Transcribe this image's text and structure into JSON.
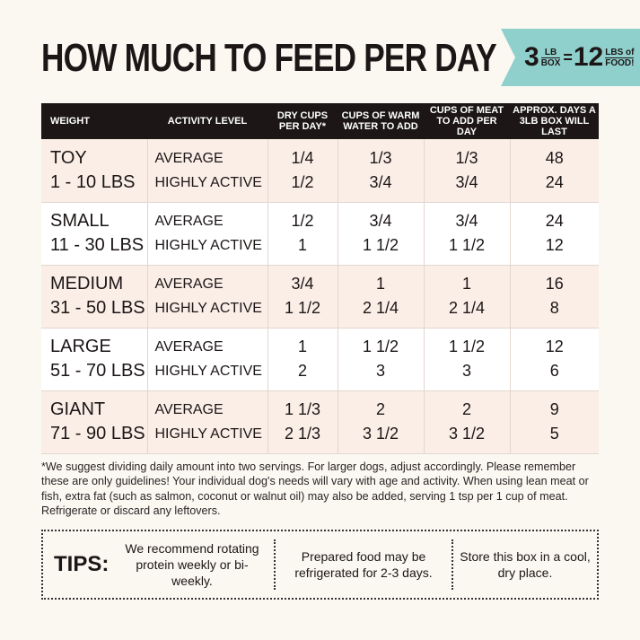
{
  "title": "HOW MUCH TO FEED PER DAY",
  "banner": {
    "n1": "3",
    "u1a": "LB",
    "u1b": "BOX",
    "eq": "=",
    "n2": "12",
    "u2a": "LBS of",
    "u2b": "FOOD!",
    "color": "#8fd0cc"
  },
  "headers": [
    "WEIGHT",
    "ACTIVITY LEVEL",
    "DRY CUPS PER DAY*",
    "CUPS OF WARM WATER TO ADD",
    "CUPS OF MEAT TO ADD PER DAY",
    "APPROX. DAYS A 3LB BOX WILL LAST"
  ],
  "rows": [
    {
      "size": "TOY",
      "range": "1 - 10 LBS",
      "a": [
        "AVERAGE",
        "1/4",
        "1/3",
        "1/3",
        "48"
      ],
      "h": [
        "HIGHLY ACTIVE",
        "1/2",
        "3/4",
        "3/4",
        "24"
      ]
    },
    {
      "size": "SMALL",
      "range": "11 - 30 LBS",
      "a": [
        "AVERAGE",
        "1/2",
        "3/4",
        "3/4",
        "24"
      ],
      "h": [
        "HIGHLY ACTIVE",
        "1",
        "1 1/2",
        "1 1/2",
        "12"
      ]
    },
    {
      "size": "MEDIUM",
      "range": "31 - 50 LBS",
      "a": [
        "AVERAGE",
        "3/4",
        "1",
        "1",
        "16"
      ],
      "h": [
        "HIGHLY ACTIVE",
        "1 1/2",
        "2 1/4",
        "2 1/4",
        "8"
      ]
    },
    {
      "size": "LARGE",
      "range": "51 - 70 LBS",
      "a": [
        "AVERAGE",
        "1",
        "1 1/2",
        "1 1/2",
        "12"
      ],
      "h": [
        "HIGHLY ACTIVE",
        "2",
        "3",
        "3",
        "6"
      ]
    },
    {
      "size": "GIANT",
      "range": "71 - 90 LBS",
      "a": [
        "AVERAGE",
        "1 1/3",
        "2",
        "2",
        "9"
      ],
      "h": [
        "HIGHLY ACTIVE",
        "2 1/3",
        "3 1/2",
        "3 1/2",
        "5"
      ]
    }
  ],
  "note": "*We suggest dividing daily amount into two servings. For larger dogs, adjust accordingly. Please remember these are only guidelines! Your individual dog's needs will vary with age and activity. When using lean meat or fish, extra fat (such as salmon, coconut or walnut oil) may also be added, serving 1 tsp per 1 cup of meat. Refrigerate or discard any leftovers.",
  "tips": {
    "label": "TIPS:",
    "items": [
      "We recommend rotating protein weekly or bi-weekly.",
      "Prepared food may be refrigerated for 2-3 days.",
      "Store this box in a cool, dry place."
    ]
  }
}
